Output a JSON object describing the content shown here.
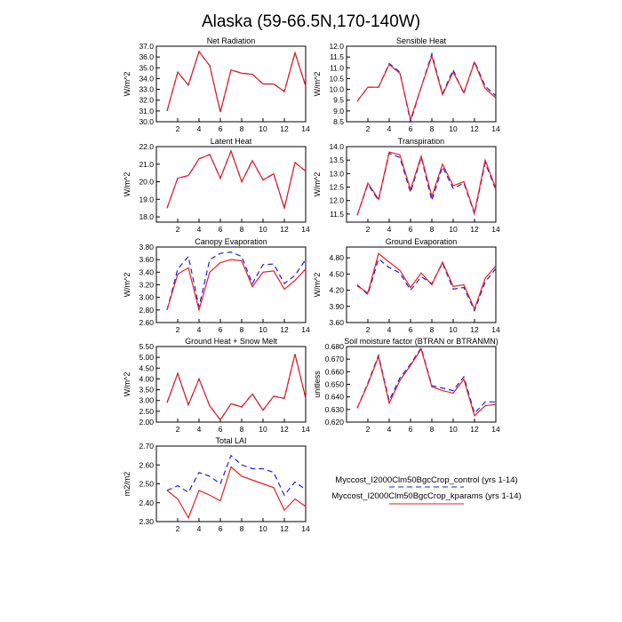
{
  "figure": {
    "title": "Alaska (59-66.5N,170-140W)"
  },
  "legend": {
    "items": [
      {
        "label": "Myccost_I2000Clm50BgcCrop_control (yrs 1-14)",
        "color": "#1f1fe6",
        "dash": "dashed"
      },
      {
        "label": "Myccost_I2000Clm50BgcCrop_kparams (yrs 1-14)",
        "color": "#e61f1f",
        "dash": "solid"
      }
    ]
  },
  "chart_data": [
    {
      "type": "line",
      "title": "Net Radiation",
      "ylabel": "W/m^2",
      "xlim": [
        0,
        14
      ],
      "xticks": [
        2,
        4,
        6,
        8,
        10,
        12,
        14
      ],
      "ylim": [
        30.0,
        37.0
      ],
      "yticks": [
        "30.0",
        "31.0",
        "32.0",
        "33.0",
        "34.0",
        "35.0",
        "36.0",
        "37.0"
      ],
      "x": [
        1,
        2,
        3,
        4,
        5,
        6,
        7,
        8,
        9,
        10,
        11,
        12,
        13,
        14
      ],
      "series": [
        {
          "values": [
            31.0,
            34.6,
            33.4,
            36.5,
            35.2,
            30.9,
            34.8,
            34.5,
            34.4,
            33.5,
            33.5,
            32.8,
            36.4,
            33.3
          ]
        },
        {
          "values": [
            31.0,
            34.6,
            33.4,
            36.5,
            35.2,
            30.9,
            34.8,
            34.5,
            34.4,
            33.5,
            33.5,
            32.8,
            36.4,
            33.3
          ]
        }
      ]
    },
    {
      "type": "line",
      "title": "Sensible Heat",
      "ylabel": "W/m^2",
      "xlim": [
        0,
        14
      ],
      "xticks": [
        2,
        4,
        6,
        8,
        10,
        12,
        14
      ],
      "ylim": [
        8.5,
        12.0
      ],
      "yticks": [
        "8.5",
        "9.0",
        "9.5",
        "10.0",
        "10.5",
        "11.0",
        "11.5",
        "12.0"
      ],
      "x": [
        1,
        2,
        3,
        4,
        5,
        6,
        7,
        8,
        9,
        10,
        11,
        12,
        13,
        14
      ],
      "series": [
        {
          "values": [
            9.45,
            10.1,
            10.1,
            11.2,
            10.8,
            8.5,
            10.1,
            11.65,
            9.8,
            10.9,
            9.8,
            11.3,
            10.15,
            9.7
          ]
        },
        {
          "values": [
            9.45,
            10.1,
            10.1,
            11.15,
            10.75,
            8.6,
            10.1,
            11.55,
            9.75,
            10.8,
            9.85,
            11.25,
            10.05,
            9.6
          ]
        }
      ]
    },
    {
      "type": "line",
      "title": "Latent Heat",
      "ylabel": "W/m^2",
      "xlim": [
        0,
        14
      ],
      "xticks": [
        2,
        4,
        6,
        8,
        10,
        12,
        14
      ],
      "ylim": [
        17.7,
        22.0
      ],
      "yticks": [
        "18.0",
        "19.0",
        "20.0",
        "21.0",
        "22.0"
      ],
      "x": [
        1,
        2,
        3,
        4,
        5,
        6,
        7,
        8,
        9,
        10,
        11,
        12,
        13,
        14
      ],
      "series": [
        {
          "values": [
            18.5,
            20.2,
            20.35,
            21.3,
            21.55,
            20.2,
            21.75,
            20.0,
            21.2,
            20.1,
            20.45,
            18.5,
            21.1,
            20.6
          ]
        },
        {
          "values": [
            18.5,
            20.2,
            20.35,
            21.3,
            21.55,
            20.2,
            21.75,
            20.0,
            21.2,
            20.1,
            20.45,
            18.5,
            21.1,
            20.6
          ]
        }
      ]
    },
    {
      "type": "line",
      "title": "Transpiration",
      "ylabel": "W/m^2",
      "xlim": [
        0,
        14
      ],
      "xticks": [
        2,
        4,
        6,
        8,
        10,
        12,
        14
      ],
      "ylim": [
        11.2,
        14.0
      ],
      "yticks": [
        "11.5",
        "12.0",
        "12.5",
        "13.0",
        "13.5",
        "14.0"
      ],
      "x": [
        1,
        2,
        3,
        4,
        5,
        6,
        7,
        8,
        9,
        10,
        11,
        12,
        13,
        14
      ],
      "series": [
        {
          "values": [
            11.45,
            12.6,
            12.0,
            13.75,
            13.6,
            12.3,
            13.6,
            12.0,
            13.25,
            12.45,
            12.65,
            11.5,
            13.4,
            12.4
          ]
        },
        {
          "values": [
            11.45,
            12.65,
            12.05,
            13.8,
            13.7,
            12.4,
            13.65,
            12.15,
            13.35,
            12.55,
            12.7,
            11.55,
            13.5,
            12.45
          ]
        }
      ]
    },
    {
      "type": "line",
      "title": "Canopy Evaporation",
      "ylabel": "W/m^2",
      "xlim": [
        0,
        14
      ],
      "xticks": [
        2,
        4,
        6,
        8,
        10,
        12,
        14
      ],
      "ylim": [
        2.6,
        3.8
      ],
      "yticks": [
        "2.60",
        "2.80",
        "3.00",
        "3.20",
        "3.40",
        "3.60",
        "3.80"
      ],
      "x": [
        1,
        2,
        3,
        4,
        5,
        6,
        7,
        8,
        9,
        10,
        11,
        12,
        13,
        14
      ],
      "series": [
        {
          "values": [
            2.8,
            3.45,
            3.65,
            2.85,
            3.6,
            3.7,
            3.72,
            3.65,
            3.22,
            3.52,
            3.53,
            3.22,
            3.35,
            3.6
          ]
        },
        {
          "values": [
            2.8,
            3.37,
            3.47,
            2.8,
            3.4,
            3.55,
            3.6,
            3.58,
            3.17,
            3.4,
            3.42,
            3.13,
            3.27,
            3.45
          ]
        }
      ]
    },
    {
      "type": "line",
      "title": "Ground Evaporation",
      "ylabel": "W/m^2",
      "xlim": [
        0,
        14
      ],
      "xticks": [
        2,
        4,
        6,
        8,
        10,
        12,
        14
      ],
      "ylim": [
        3.6,
        5.0
      ],
      "yticks": [
        "3.60",
        "3.90",
        "4.20",
        "4.50",
        "4.80"
      ],
      "x": [
        1,
        2,
        3,
        4,
        5,
        6,
        7,
        8,
        9,
        10,
        11,
        12,
        13,
        14
      ],
      "series": [
        {
          "values": [
            4.3,
            4.12,
            4.78,
            4.62,
            4.52,
            4.2,
            4.45,
            4.32,
            4.7,
            4.22,
            4.25,
            3.82,
            4.35,
            4.6
          ]
        },
        {
          "values": [
            4.28,
            4.15,
            4.88,
            4.72,
            4.57,
            4.25,
            4.52,
            4.3,
            4.72,
            4.27,
            4.3,
            3.85,
            4.42,
            4.65
          ]
        }
      ]
    },
    {
      "type": "line",
      "title": "Ground Heat + Snow Melt",
      "ylabel": "W/m^2",
      "xlim": [
        0,
        14
      ],
      "xticks": [
        2,
        4,
        6,
        8,
        10,
        12,
        14
      ],
      "ylim": [
        2.0,
        5.5
      ],
      "yticks": [
        "2.00",
        "2.50",
        "3.00",
        "3.50",
        "4.00",
        "4.50",
        "5.00",
        "5.50"
      ],
      "x": [
        1,
        2,
        3,
        4,
        5,
        6,
        7,
        8,
        9,
        10,
        11,
        12,
        13,
        14
      ],
      "series": [
        {
          "values": [
            2.9,
            4.25,
            2.8,
            4.0,
            2.75,
            2.1,
            2.85,
            2.7,
            3.3,
            2.55,
            3.2,
            3.1,
            5.15,
            3.1
          ]
        },
        {
          "values": [
            2.9,
            4.25,
            2.8,
            4.0,
            2.75,
            2.1,
            2.85,
            2.7,
            3.3,
            2.55,
            3.2,
            3.1,
            5.15,
            3.1
          ]
        }
      ]
    },
    {
      "type": "line",
      "title": "Soil moisture factor (BTRAN or BTRANMN)",
      "ylabel": "unitless",
      "xlim": [
        0,
        14
      ],
      "xticks": [
        2,
        4,
        6,
        8,
        10,
        12,
        14
      ],
      "ylim": [
        0.62,
        0.68
      ],
      "yticks": [
        "0.620",
        "0.630",
        "0.640",
        "0.650",
        "0.660",
        "0.670",
        "0.680"
      ],
      "x": [
        1,
        2,
        3,
        4,
        5,
        6,
        7,
        8,
        9,
        10,
        11,
        12,
        13,
        14
      ],
      "series": [
        {
          "values": [
            0.631,
            0.651,
            0.673,
            0.637,
            0.655,
            0.666,
            0.679,
            0.649,
            0.647,
            0.645,
            0.656,
            0.627,
            0.636,
            0.636
          ]
        },
        {
          "values": [
            0.631,
            0.65,
            0.672,
            0.635,
            0.653,
            0.665,
            0.678,
            0.648,
            0.645,
            0.643,
            0.654,
            0.625,
            0.633,
            0.634
          ]
        }
      ]
    },
    {
      "type": "line",
      "title": "Total LAI",
      "ylabel": "m2/m2",
      "xlim": [
        0,
        14
      ],
      "xticks": [
        2,
        4,
        6,
        8,
        10,
        12,
        14
      ],
      "ylim": [
        2.3,
        2.7
      ],
      "yticks": [
        "2.30",
        "2.40",
        "2.50",
        "2.60",
        "2.70"
      ],
      "x": [
        1,
        2,
        3,
        4,
        5,
        6,
        7,
        8,
        9,
        10,
        11,
        12,
        13,
        14
      ],
      "series": [
        {
          "values": [
            2.465,
            2.49,
            2.455,
            2.56,
            2.54,
            2.5,
            2.65,
            2.6,
            2.58,
            2.58,
            2.56,
            2.44,
            2.51,
            2.47
          ]
        },
        {
          "values": [
            2.465,
            2.42,
            2.32,
            2.465,
            2.44,
            2.41,
            2.59,
            2.54,
            2.52,
            2.5,
            2.48,
            2.36,
            2.42,
            2.38
          ]
        }
      ]
    }
  ]
}
